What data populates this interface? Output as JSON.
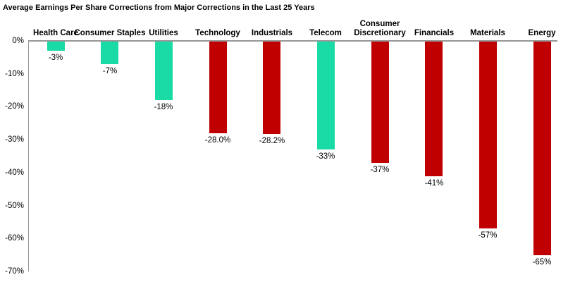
{
  "chart_data": {
    "type": "bar",
    "title": "Average Earnings Per Share Corrections from Major Corrections in the Last 25 Years",
    "categories": [
      "Health Care",
      "Consumer Staples",
      "Utilities",
      "Technology",
      "Industrials",
      "Telecom",
      "Consumer Discretionary",
      "Financials",
      "Materials",
      "Energy"
    ],
    "values": [
      -3,
      -7,
      -18,
      -28.0,
      -28.2,
      -33,
      -37,
      -41,
      -57,
      -65
    ],
    "value_labels": [
      "-3%",
      "-7%",
      "-18%",
      "-28.0%",
      "-28.2%",
      "-33%",
      "-37%",
      "-41%",
      "-57%",
      "-65%"
    ],
    "bar_colors": [
      "#1ADBA6",
      "#1ADBA6",
      "#1ADBA6",
      "#C00000",
      "#C00000",
      "#1ADBA6",
      "#C00000",
      "#C00000",
      "#C00000",
      "#C00000"
    ],
    "xlabel": "",
    "ylabel": "",
    "ylim": [
      -70,
      0
    ],
    "yticks": [
      {
        "label": "0%",
        "value": 0
      },
      {
        "label": "-10%",
        "value": -10
      },
      {
        "label": "-20%",
        "value": -20
      },
      {
        "label": "-30%",
        "value": -30
      },
      {
        "label": "-40%",
        "value": -40
      },
      {
        "label": "-50%",
        "value": -50
      },
      {
        "label": "-60%",
        "value": -60
      },
      {
        "label": "-70%",
        "value": -70
      }
    ],
    "grid": false,
    "legend": null,
    "colors": {
      "positive_group": "#1ADBA6",
      "negative_group": "#C00000",
      "axis": "#969696",
      "text": "#000000",
      "background": "#FFFFFF"
    }
  }
}
